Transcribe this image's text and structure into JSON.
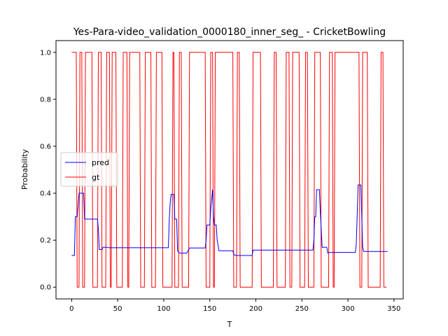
{
  "chart_data": {
    "type": "line",
    "title": "Yes-Para-video_validation_0000180_inner_seg_ - CricketBowling",
    "xlabel": "T",
    "ylabel": "Probability",
    "xlim": [
      -17,
      360
    ],
    "ylim": [
      -0.05,
      1.05
    ],
    "xticks": [
      0,
      50,
      100,
      150,
      200,
      250,
      300,
      350
    ],
    "yticks": [
      0.0,
      0.2,
      0.4,
      0.6,
      0.8,
      1.0
    ],
    "xtick_labels": [
      "0",
      "50",
      "100",
      "150",
      "200",
      "250",
      "300",
      "350"
    ],
    "ytick_labels": [
      "0.0",
      "0.2",
      "0.4",
      "0.6",
      "0.8",
      "1.0"
    ],
    "legend": {
      "position": "center-left",
      "entries": [
        "pred",
        "gt"
      ]
    },
    "colors": {
      "pred": "#0000ff",
      "gt": "#ff0000"
    },
    "series": [
      {
        "name": "pred",
        "step": false,
        "x": [
          0,
          3,
          4,
          6,
          8,
          9,
          13,
          14,
          17,
          28,
          29,
          30,
          33,
          34,
          38,
          40,
          60,
          80,
          100,
          105,
          106,
          107,
          108,
          111,
          112,
          114,
          115,
          117,
          120,
          125,
          128,
          145,
          146,
          147,
          150,
          151,
          153,
          154,
          155,
          157,
          158,
          160,
          175,
          176,
          178,
          180,
          196,
          197,
          210,
          230,
          262,
          263,
          264,
          265,
          266,
          269,
          270,
          272,
          273,
          277,
          278,
          280,
          290,
          300,
          308,
          309,
          310,
          311,
          314,
          315,
          316,
          317,
          340,
          343
        ],
        "y": [
          0.135,
          0.135,
          0.3,
          0.3,
          0.4,
          0.4,
          0.4,
          0.29,
          0.29,
          0.29,
          0.25,
          0.16,
          0.16,
          0.17,
          0.17,
          0.168,
          0.168,
          0.168,
          0.168,
          0.168,
          0.29,
          0.36,
          0.395,
          0.395,
          0.29,
          0.29,
          0.155,
          0.145,
          0.145,
          0.145,
          0.167,
          0.167,
          0.2,
          0.265,
          0.265,
          0.33,
          0.415,
          0.3,
          0.265,
          0.265,
          0.2,
          0.155,
          0.155,
          0.14,
          0.135,
          0.135,
          0.135,
          0.158,
          0.158,
          0.158,
          0.158,
          0.2,
          0.3,
          0.3,
          0.415,
          0.415,
          0.32,
          0.17,
          0.17,
          0.17,
          0.145,
          0.148,
          0.148,
          0.148,
          0.148,
          0.18,
          0.3,
          0.435,
          0.435,
          0.3,
          0.17,
          0.152,
          0.152,
          0.152
        ]
      },
      {
        "name": "gt",
        "step": true,
        "x": [
          0,
          5,
          6,
          8,
          9,
          11,
          12,
          14,
          15,
          22,
          23,
          28,
          29,
          32,
          33,
          37,
          38,
          41,
          42,
          43,
          44,
          48,
          49,
          55,
          56,
          60,
          61,
          62,
          63,
          74,
          75,
          79,
          80,
          86,
          87,
          91,
          92,
          98,
          99,
          109,
          110,
          111,
          112,
          116,
          117,
          119,
          120,
          127,
          128,
          145,
          146,
          150,
          151,
          153,
          154,
          155,
          156,
          175,
          176,
          179,
          180,
          182,
          183,
          196,
          197,
          205,
          206,
          219,
          220,
          222,
          223,
          232,
          233,
          236,
          237,
          239,
          240,
          247,
          248,
          253,
          254,
          256,
          257,
          263,
          264,
          270,
          271,
          279,
          280,
          283,
          284,
          285,
          286,
          312,
          313,
          315,
          316,
          321,
          322,
          335,
          336,
          338,
          339,
          342
        ],
        "y": [
          1,
          1,
          0,
          0,
          1,
          1,
          0,
          0,
          1,
          1,
          0,
          0,
          1,
          1,
          0,
          0,
          1,
          1,
          0,
          0,
          1,
          1,
          0,
          0,
          1,
          1,
          0,
          0,
          1,
          1,
          0,
          0,
          1,
          1,
          0,
          0,
          1,
          1,
          0,
          0,
          1,
          1,
          0,
          0,
          1,
          1,
          0,
          0,
          1,
          1,
          0,
          0,
          1,
          1,
          0,
          0,
          1,
          1,
          0,
          0,
          1,
          1,
          0,
          0,
          1,
          1,
          0,
          0,
          1,
          1,
          0,
          0,
          1,
          1,
          0,
          0,
          1,
          1,
          0,
          0,
          1,
          1,
          0,
          0,
          1,
          1,
          0,
          0,
          1,
          1,
          0,
          0,
          1,
          1,
          0,
          0,
          1,
          1,
          0,
          0,
          1,
          1,
          0,
          0
        ]
      }
    ]
  }
}
